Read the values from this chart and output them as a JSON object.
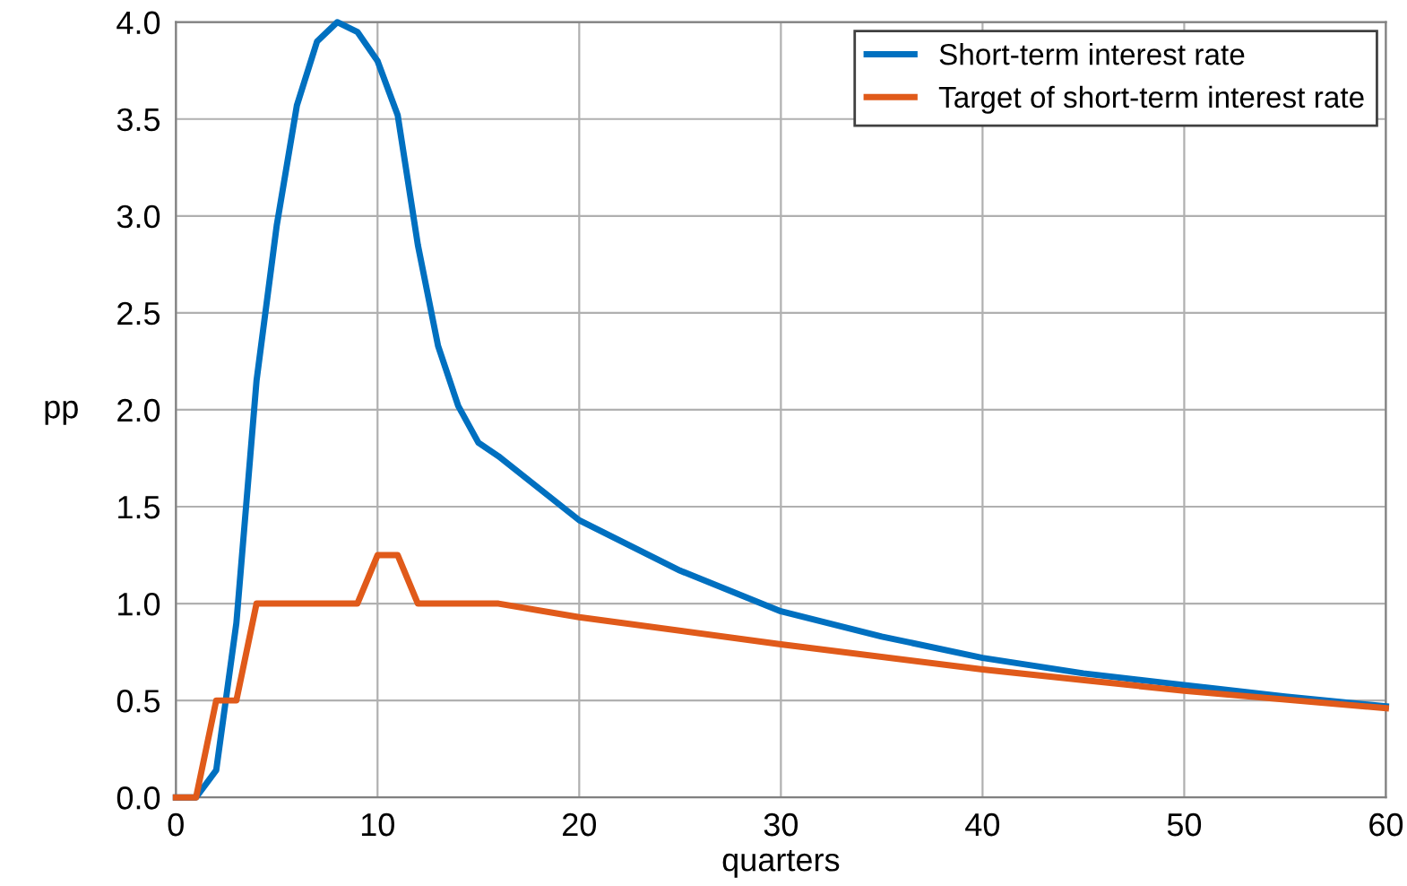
{
  "chart_data": {
    "type": "line",
    "xlabel": "quarters",
    "ylabel": "pp",
    "xlim": [
      0,
      60
    ],
    "ylim": [
      0,
      4.0
    ],
    "xticks": [
      0,
      10,
      20,
      30,
      40,
      50,
      60
    ],
    "yticks": [
      {
        "value": 0,
        "label": "0.0"
      },
      {
        "value": 0.5,
        "label": "0.5"
      },
      {
        "value": 1,
        "label": "1.0"
      },
      {
        "value": 1.5,
        "label": "1.5"
      },
      {
        "value": 2,
        "label": "2.0"
      },
      {
        "value": 2.5,
        "label": "2.5"
      },
      {
        "value": 3,
        "label": "3.0"
      },
      {
        "value": 3.5,
        "label": "3.5"
      },
      {
        "value": 4,
        "label": "4.0"
      }
    ],
    "grid": true,
    "legend": "top right",
    "marker": "none",
    "line_style": "solid",
    "series": [
      {
        "name": "Short-term interest rate",
        "color": "#0070c0",
        "x": [
          0,
          1,
          2,
          3,
          4,
          5,
          6,
          7,
          8,
          9,
          10,
          11,
          12,
          13,
          14,
          15,
          16,
          20,
          25,
          30,
          35,
          40,
          45,
          50,
          55,
          60
        ],
        "values": [
          0,
          0,
          0.14,
          0.9,
          2.15,
          2.95,
          3.57,
          3.9,
          4.0,
          3.95,
          3.8,
          3.52,
          2.85,
          2.33,
          2.02,
          1.83,
          1.76,
          1.43,
          1.17,
          0.96,
          0.83,
          0.72,
          0.64,
          0.58,
          0.52,
          0.47
        ]
      },
      {
        "name": "Target of short-term interest rate",
        "color": "#e05a1a",
        "x": [
          0,
          1,
          2,
          3,
          4,
          5,
          6,
          7,
          8,
          9,
          10,
          11,
          12,
          13,
          14,
          15,
          16,
          20,
          30,
          40,
          50,
          60
        ],
        "values": [
          0,
          0,
          0.5,
          0.5,
          1,
          1,
          1,
          1,
          1,
          1,
          1.25,
          1.25,
          1,
          1,
          1,
          1,
          1,
          0.93,
          0.79,
          0.66,
          0.55,
          0.46
        ]
      }
    ]
  }
}
